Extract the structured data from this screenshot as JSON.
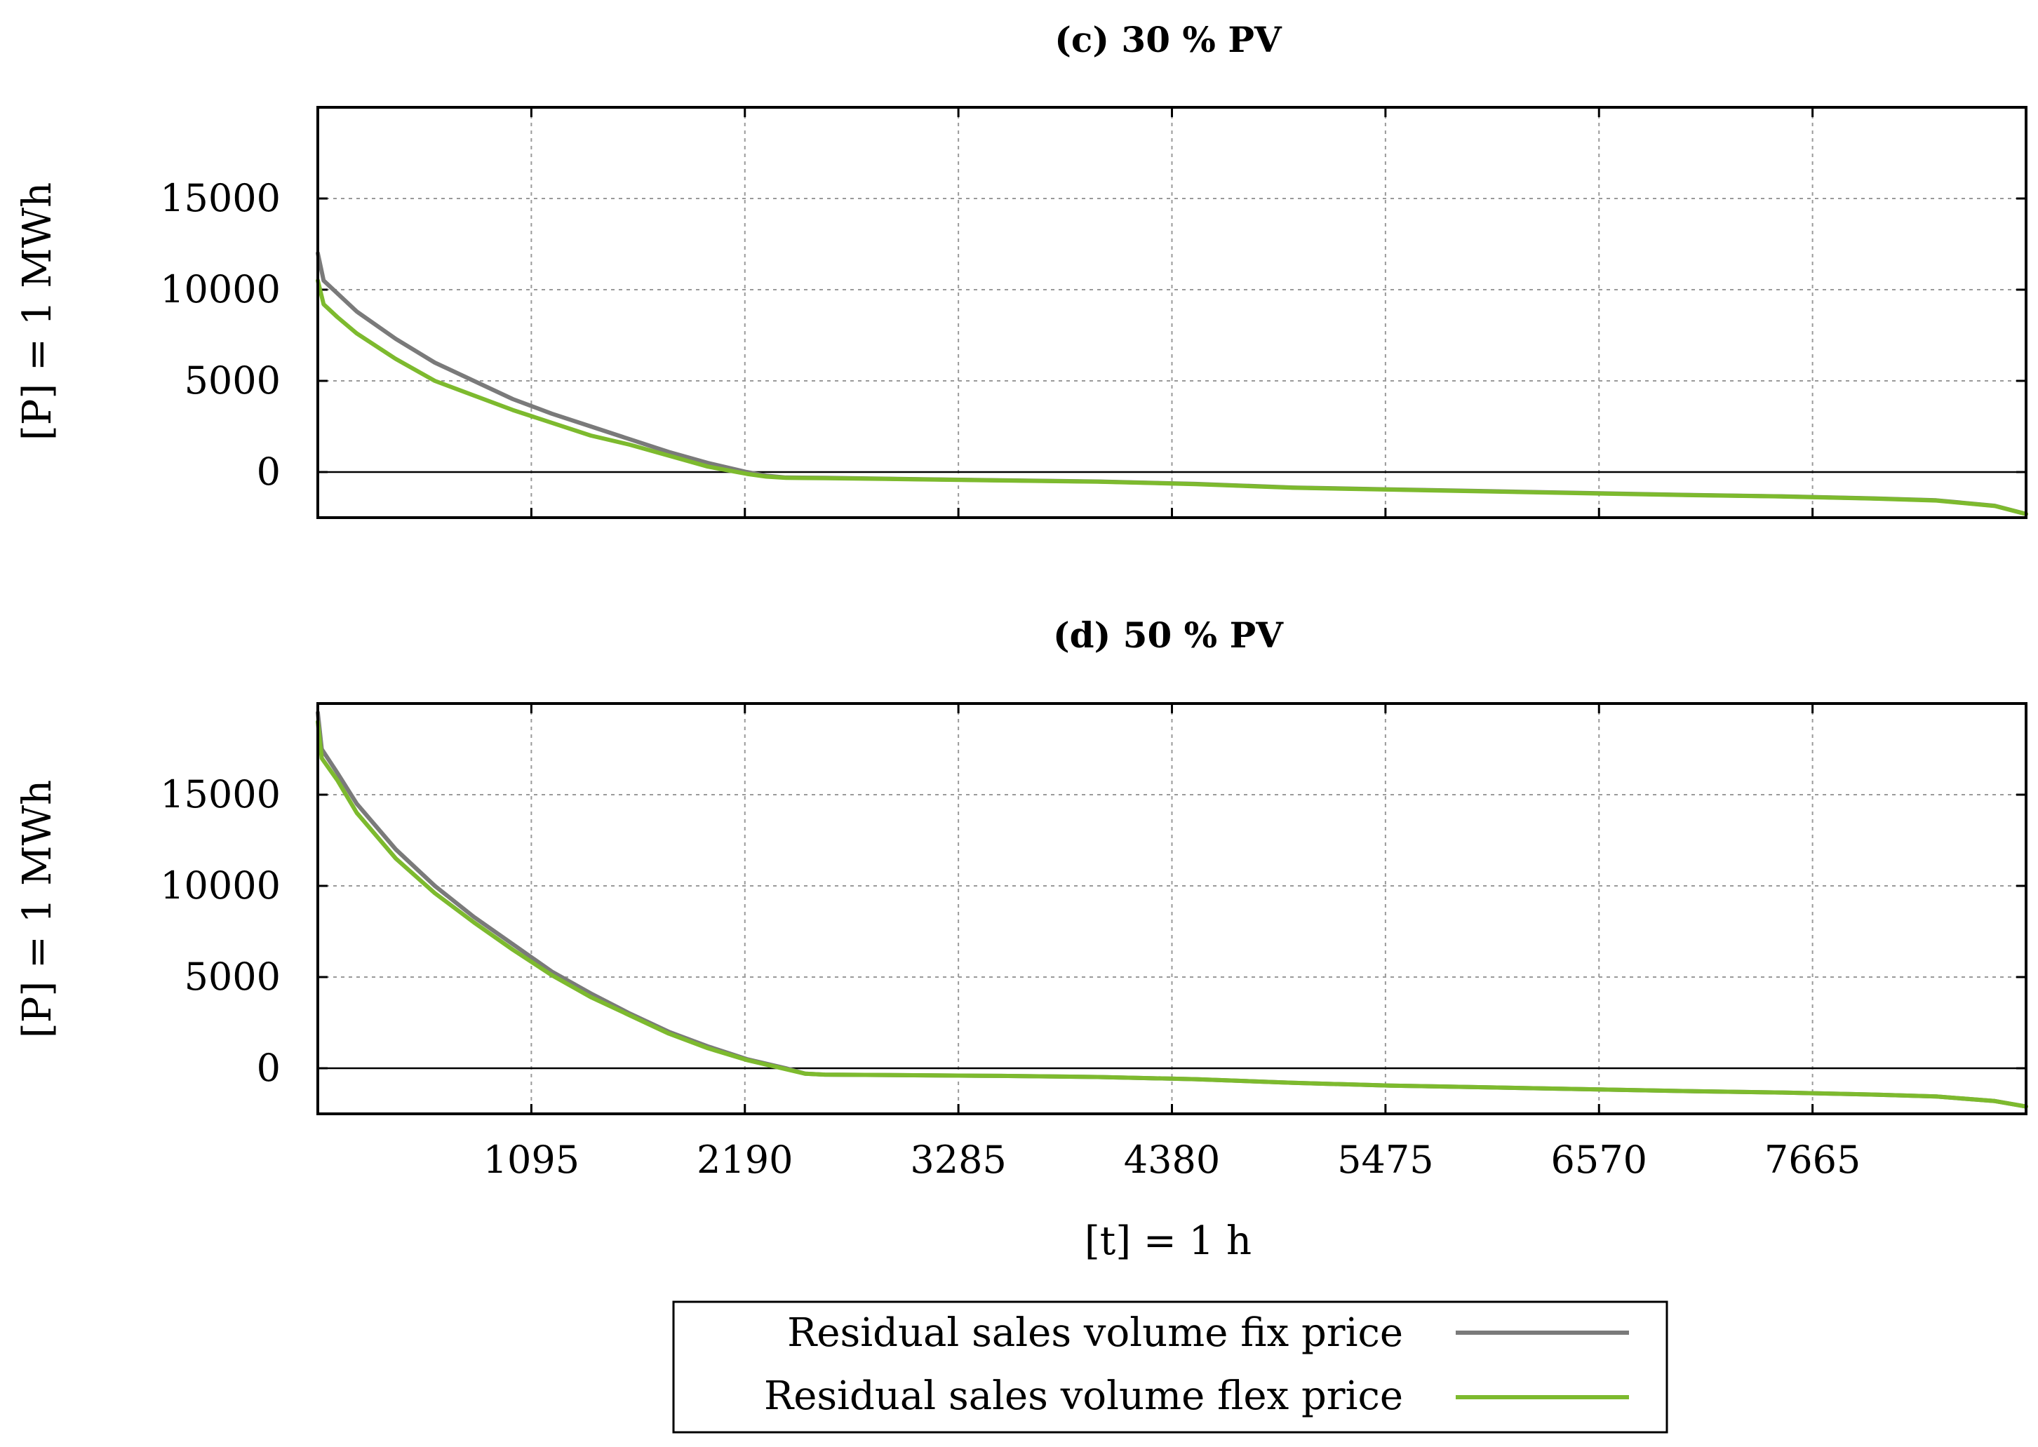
{
  "chart_data": [
    {
      "id": "panel_c",
      "type": "line",
      "title": "(c) 30 % PV",
      "xlabel": "",
      "ylabel": "[P] = 1 MWh",
      "xlim": [
        0,
        8760
      ],
      "ylim": [
        -2500,
        20000
      ],
      "xticks": [
        1095,
        2190,
        3285,
        4380,
        5475,
        6570,
        7665
      ],
      "xtick_labels_shown": false,
      "yticks": [
        0,
        5000,
        10000,
        15000
      ],
      "ytick_labels": [
        "0",
        "5000",
        "10000",
        "15000"
      ],
      "grid": true,
      "series": [
        {
          "name": "Residual sales volume fix price",
          "color": "#7a7a7a",
          "x": [
            0,
            30,
            100,
            200,
            400,
            600,
            800,
            1000,
            1200,
            1400,
            1600,
            1800,
            2000,
            2200,
            2300,
            2400,
            2600,
            3000,
            3500,
            4000,
            4500,
            5000,
            5500,
            6000,
            6500,
            7000,
            7500,
            8000,
            8300,
            8600,
            8760
          ],
          "y": [
            12000,
            10500,
            9800,
            8800,
            7300,
            6000,
            5000,
            4000,
            3200,
            2500,
            1800,
            1100,
            500,
            0,
            -200,
            -300,
            -320,
            -380,
            -450,
            -520,
            -650,
            -850,
            -950,
            -1050,
            -1150,
            -1250,
            -1330,
            -1450,
            -1550,
            -1850,
            -2300
          ]
        },
        {
          "name": "Residual sales volume flex price",
          "color": "#7dba2e",
          "x": [
            0,
            30,
            100,
            200,
            400,
            600,
            800,
            1000,
            1200,
            1400,
            1600,
            1800,
            2000,
            2200,
            2300,
            2400,
            2600,
            3000,
            3500,
            4000,
            4500,
            5000,
            5500,
            6000,
            6500,
            7000,
            7500,
            8000,
            8300,
            8600,
            8760
          ],
          "y": [
            10500,
            9200,
            8500,
            7600,
            6200,
            5000,
            4200,
            3400,
            2700,
            2000,
            1500,
            900,
            300,
            -100,
            -250,
            -320,
            -340,
            -390,
            -460,
            -530,
            -660,
            -860,
            -960,
            -1060,
            -1160,
            -1260,
            -1340,
            -1460,
            -1560,
            -1860,
            -2300
          ]
        }
      ]
    },
    {
      "id": "panel_d",
      "type": "line",
      "title": "(d) 50 % PV",
      "xlabel": "[t] = 1 h",
      "ylabel": "[P] = 1 MWh",
      "xlim": [
        0,
        8760
      ],
      "ylim": [
        -2500,
        20000
      ],
      "xticks": [
        1095,
        2190,
        3285,
        4380,
        5475,
        6570,
        7665
      ],
      "xtick_labels": [
        "1095",
        "2190",
        "3285",
        "4380",
        "5475",
        "6570",
        "7665"
      ],
      "xtick_labels_shown": true,
      "yticks": [
        0,
        5000,
        10000,
        15000
      ],
      "ytick_labels": [
        "0",
        "5000",
        "10000",
        "15000"
      ],
      "grid": true,
      "series": [
        {
          "name": "Residual sales volume fix price",
          "color": "#7a7a7a",
          "x": [
            0,
            20,
            100,
            200,
            400,
            600,
            800,
            1000,
            1200,
            1400,
            1600,
            1800,
            2000,
            2200,
            2400,
            2500,
            2600,
            3000,
            3500,
            4000,
            4500,
            5000,
            5500,
            6000,
            6500,
            7000,
            7500,
            8000,
            8300,
            8600,
            8760
          ],
          "y": [
            19500,
            17500,
            16200,
            14500,
            12000,
            10000,
            8300,
            6800,
            5300,
            4100,
            3000,
            2000,
            1200,
            500,
            0,
            -300,
            -350,
            -380,
            -420,
            -480,
            -600,
            -800,
            -950,
            -1050,
            -1150,
            -1250,
            -1330,
            -1450,
            -1550,
            -1800,
            -2100
          ]
        },
        {
          "name": "Residual sales volume flex price",
          "color": "#7dba2e",
          "x": [
            0,
            20,
            100,
            200,
            400,
            600,
            800,
            1000,
            1200,
            1400,
            1600,
            1800,
            2000,
            2200,
            2400,
            2500,
            2600,
            3000,
            3500,
            4000,
            4500,
            5000,
            5500,
            6000,
            6500,
            7000,
            7500,
            8000,
            8300,
            8600,
            8760
          ],
          "y": [
            19000,
            17000,
            15800,
            14000,
            11500,
            9600,
            8000,
            6500,
            5100,
            3900,
            2900,
            1900,
            1100,
            450,
            -50,
            -300,
            -350,
            -380,
            -420,
            -480,
            -600,
            -800,
            -950,
            -1050,
            -1150,
            -1250,
            -1330,
            -1450,
            -1550,
            -1800,
            -2100
          ]
        }
      ]
    }
  ],
  "legend": {
    "entries": [
      {
        "label": "Residual sales volume fix price",
        "color": "#7a7a7a"
      },
      {
        "label": "Residual sales volume flex price",
        "color": "#7dba2e"
      }
    ]
  }
}
